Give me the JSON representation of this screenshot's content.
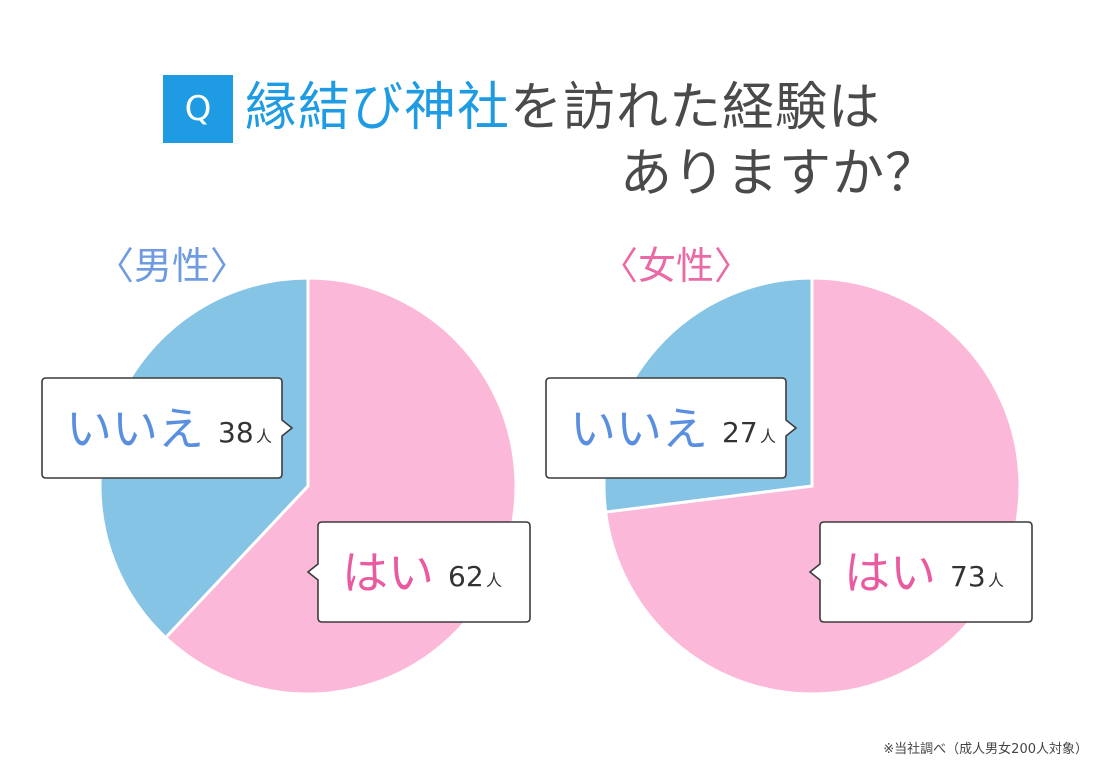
{
  "header": {
    "badge": "Q",
    "title_accent": "縁結び神社",
    "title_rest": "を訪れた経験は",
    "title_line2": "ありますか？"
  },
  "footnote": "※当社調べ（成人男女200人対象）",
  "colors": {
    "accent": "#1e9be2",
    "yes_slice": "#fbb8d8",
    "no_slice": "#86c4e6",
    "yes_text": "#ea5aa0",
    "no_text": "#5a8fe0"
  },
  "chart_data": [
    {
      "type": "pie",
      "title": "〈男性〉",
      "unit": "人",
      "slices": [
        {
          "label": "いいえ",
          "value": 38,
          "display": "38"
        },
        {
          "label": "はい",
          "value": 62,
          "display": "62"
        }
      ]
    },
    {
      "type": "pie",
      "title": "〈女性〉",
      "unit": "人",
      "slices": [
        {
          "label": "いいえ",
          "value": 27,
          "display": "27"
        },
        {
          "label": "はい",
          "value": 73,
          "display": "73"
        }
      ]
    }
  ]
}
